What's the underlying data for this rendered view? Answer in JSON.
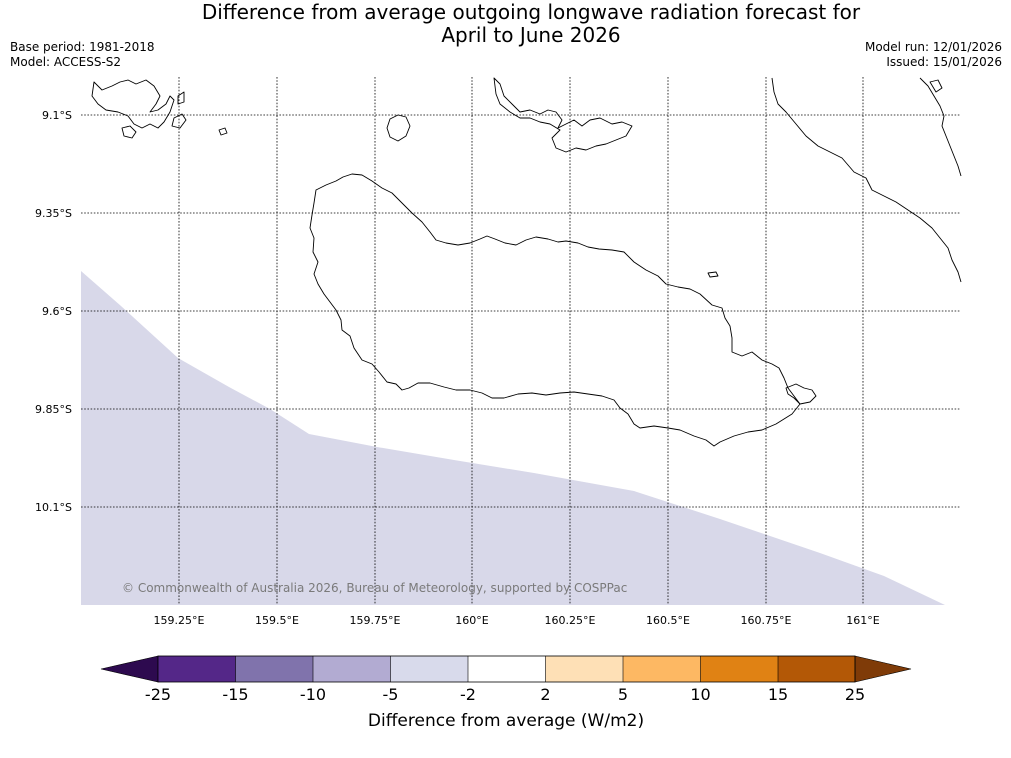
{
  "title": {
    "line1": "Difference from average outgoing longwave radiation forecast for",
    "line2": "April to June 2026"
  },
  "meta": {
    "base_period": "Base period: 1981-2018",
    "model": "Model: ACCESS-S2",
    "model_run": "Model run: 12/01/2026",
    "issued": "Issued: 15/01/2026"
  },
  "map": {
    "copyright": "© Commonwealth of Australia 2026, Bureau of Meteorology, supported by COSPPac",
    "lon_ticks": [
      "159.25°E",
      "159.5°E",
      "159.75°E",
      "160°E",
      "160.25°E",
      "160.5°E",
      "160.75°E",
      "161°E"
    ],
    "lat_ticks": [
      "9.1°S",
      "9.35°S",
      "9.6°S",
      "9.85°S",
      "10.1°S"
    ],
    "anomaly_region": {
      "category": "-5 to -2",
      "color": "#d8d8e9"
    }
  },
  "colorbar": {
    "title": "Difference from average (W/m2)",
    "labels": [
      "-25",
      "-15",
      "-10",
      "-5",
      "-2",
      "2",
      "5",
      "10",
      "15",
      "25"
    ],
    "colors": {
      "under": "#2d0a4f",
      "bins": [
        "#542788",
        "#8073ac",
        "#b2abd2",
        "#d8daeb",
        "#ffffff",
        "#fee0b6",
        "#fdb863",
        "#e08214",
        "#b35806"
      ],
      "over": "#7f3b08"
    }
  }
}
